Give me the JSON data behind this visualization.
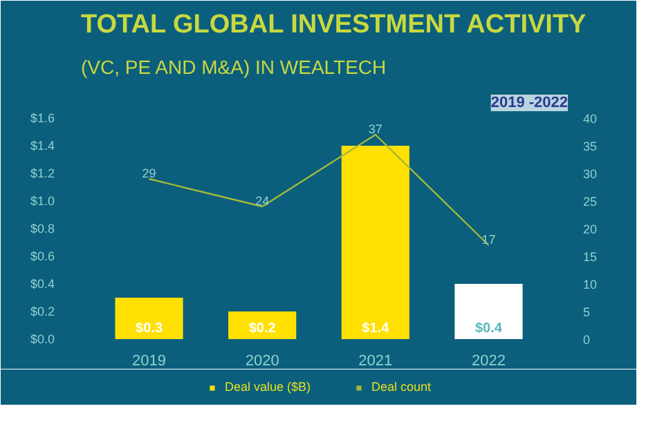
{
  "chart_data": {
    "type": "bar",
    "title": "TOTAL GLOBAL INVESTMENT ACTIVITY",
    "subtitle": "(VC, PE AND M&A) IN WEALTECH",
    "annotations": [
      "2019 -2022"
    ],
    "categories": [
      "2019",
      "2020",
      "2021",
      "2022"
    ],
    "ylim": [
      0,
      1.6
    ],
    "yticks": [
      {
        "value": 0,
        "label": "$0.0"
      },
      {
        "value": 0.2,
        "label": "$0.2"
      },
      {
        "value": 0.4,
        "label": "$0.4"
      },
      {
        "value": 0.6,
        "label": "$0.6"
      },
      {
        "value": 0.8,
        "label": "$0.8"
      },
      {
        "value": 1.0,
        "label": "$1.0"
      },
      {
        "value": 1.2,
        "label": "$1.2"
      },
      {
        "value": 1.4,
        "label": "$1.4"
      },
      {
        "value": 1.6,
        "label": "$1.6"
      }
    ],
    "y2lim": [
      0,
      40
    ],
    "y2ticks": [
      0,
      5,
      10,
      15,
      20,
      25,
      30,
      35,
      40
    ],
    "series": [
      {
        "name": "Deal value ($B)",
        "type": "bar",
        "color": "#ffe000",
        "colors": [
          "#ffe000",
          "#ffe000",
          "#ffe000",
          "#ffffff"
        ],
        "values": [
          0.3,
          0.2,
          1.4,
          0.4
        ],
        "value_labels": [
          "$0.3",
          "$0.2",
          "$1.4",
          "$0.4"
        ]
      },
      {
        "name": "Deal count",
        "type": "line",
        "axis": "y2",
        "color": "#a4b83c",
        "values": [
          29,
          24,
          37,
          17
        ],
        "data_labels": true
      }
    ],
    "legend": "bottom",
    "grid": false
  }
}
